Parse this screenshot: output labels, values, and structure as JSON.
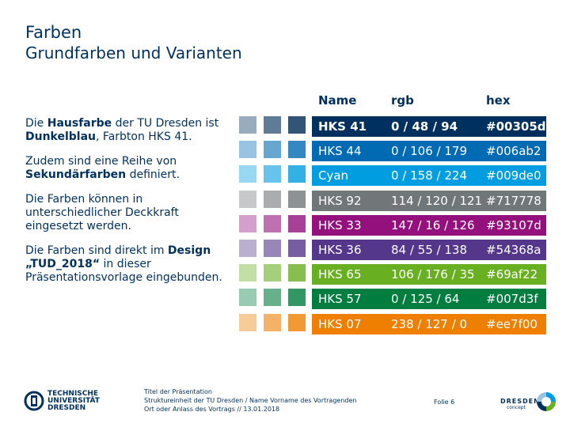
{
  "header": {
    "title": "Farben",
    "subtitle": "Grundfarben und Varianten"
  },
  "intro": [
    {
      "parts": [
        {
          "t": "Die ",
          "b": false
        },
        {
          "t": "Hausfarbe",
          "b": true
        },
        {
          "t": " der TU Dresden ist ",
          "b": false
        },
        {
          "t": "Dunkelblau",
          "b": true
        },
        {
          "t": ", Farbton HKS 41.",
          "b": false
        }
      ]
    },
    {
      "parts": [
        {
          "t": "Zudem sind eine Reihe von ",
          "b": false
        },
        {
          "t": "Sekundärfarben",
          "b": true
        },
        {
          "t": " definiert.",
          "b": false
        }
      ]
    },
    {
      "parts": [
        {
          "t": "Die Farben können in unterschiedlicher Deckkraft eingesetzt werden.",
          "b": false
        }
      ]
    },
    {
      "parts": [
        {
          "t": "Die Farben sind direkt im ",
          "b": false
        },
        {
          "t": "Design „TUD_2018“",
          "b": true
        },
        {
          "t": " in dieser Präsentationsvorlage eingebunden.",
          "b": false
        }
      ]
    }
  ],
  "table": {
    "headers": {
      "name": "Name",
      "rgb": "rgb",
      "hex": "hex"
    },
    "rows": [
      {
        "name": "HKS 41",
        "rgb": "0 / 48 / 94",
        "hex": "#00305d",
        "color": "#00305d",
        "tints": [
          "#99acbe",
          "#5f7b97",
          "#325479"
        ],
        "bold": true
      },
      {
        "name": "HKS 44",
        "rgb": "0 / 106 / 179",
        "hex": "#006ab2",
        "color": "#006ab2",
        "tints": [
          "#99c3e0",
          "#66a6d1",
          "#3388c1"
        ],
        "bold": false
      },
      {
        "name": "Cyan",
        "rgb": "0 / 158 / 224",
        "hex": "#009de0",
        "color": "#009de0",
        "tints": [
          "#99d8f3",
          "#66c4ec",
          "#33b1e6"
        ],
        "bold": false
      },
      {
        "name": "HKS 92",
        "rgb": "114 / 120 / 121",
        "hex": "#717778",
        "color": "#717778",
        "tints": [
          "#c6c9c9",
          "#aaadae",
          "#8d9293"
        ],
        "bold": false
      },
      {
        "name": "HKS 33",
        "rgb": "147 / 16 / 126",
        "hex": "#93107d",
        "color": "#93107d",
        "tints": [
          "#d49fcb",
          "#be70b1",
          "#a94097"
        ],
        "bold": false
      },
      {
        "name": "HKS 36",
        "rgb": "84 / 55 / 138",
        "hex": "#54368a",
        "color": "#54368a",
        "tints": [
          "#bbafd0",
          "#9886b9",
          "#765ea1"
        ],
        "bold": false
      },
      {
        "name": "HKS 65",
        "rgb": "106 / 176 / 35",
        "hex": "#69af22",
        "color": "#69af22",
        "tints": [
          "#c3dfa7",
          "#a5cf7a",
          "#87bf4e"
        ],
        "bold": false
      },
      {
        "name": "HKS 57",
        "rgb": "0 / 125 / 64",
        "hex": "#007d3f",
        "color": "#007d3f",
        "tints": [
          "#99cbb2",
          "#66b18c",
          "#339765"
        ],
        "bold": false
      },
      {
        "name": "HKS 07",
        "rgb": "238 / 127 / 0",
        "hex": "#ee7f00",
        "color": "#ee7f00",
        "tints": [
          "#f8cc99",
          "#f5b266",
          "#f19933"
        ],
        "bold": false
      }
    ]
  },
  "footer": {
    "line1": "Titel der Präsentation",
    "line2": "Struktureinheit der TU Dresden / Name Vorname des Vortragenden",
    "line3": "Ort oder Anlass des Vortrags // 13.01.2018",
    "page": "Folie 6",
    "logo_tu": [
      "TECHNISCHE",
      "UNIVERSITÄT",
      "DRESDEN"
    ],
    "logo_dc": {
      "name": "DRESDEN",
      "sub": "concept"
    }
  }
}
